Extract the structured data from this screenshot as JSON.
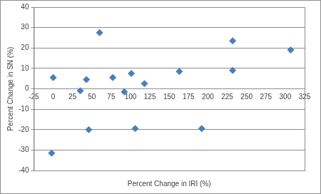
{
  "chart_data": {
    "type": "scatter",
    "x_label": "Percent Change in IRI (%)",
    "y_label": "Percent Change in SN (%)",
    "x": [
      0,
      -2,
      35,
      43,
      46,
      60,
      77,
      92,
      101,
      106,
      118,
      163,
      192,
      232,
      232,
      307
    ],
    "values": [
      5.5,
      -31.5,
      -1,
      4.5,
      -20,
      27.5,
      5.5,
      -1.5,
      7.5,
      -19.5,
      2.5,
      8.5,
      -19.5,
      23.5,
      9,
      19
    ],
    "color": "#4a7ebb",
    "marker": "diamond",
    "xlim": [
      -25,
      325
    ],
    "xticks": [
      -25,
      0,
      25,
      50,
      75,
      100,
      125,
      150,
      175,
      200,
      225,
      250,
      275,
      300,
      325
    ],
    "ylim": [
      -40,
      40
    ],
    "yticks": [
      -40,
      -30,
      -20,
      -10,
      0,
      10,
      20,
      30,
      40
    ],
    "grid": "y"
  }
}
